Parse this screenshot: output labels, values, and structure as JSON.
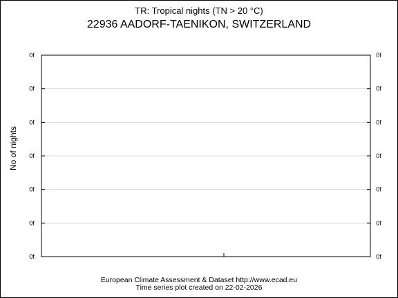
{
  "header": {
    "subtitle": "TR: Tropical nights (TN > 20 °C)",
    "title": "22936 AADORF-TAENIKON, SWITZERLAND"
  },
  "footer": {
    "line1": "European Climate Assessment & Dataset  http://www.ecad.eu",
    "line2": "Time series plot created on 22-02-2026"
  },
  "chart_data": {
    "type": "line",
    "ylabel": "No of nights",
    "xlabel": "",
    "y_tick_labels": [
      "0f",
      "0f",
      "0f",
      "0f",
      "0f",
      "0f",
      "0f"
    ],
    "series": [],
    "grid": true,
    "colors": {
      "axis": "#000000",
      "grid": "#d9d9d9"
    }
  }
}
